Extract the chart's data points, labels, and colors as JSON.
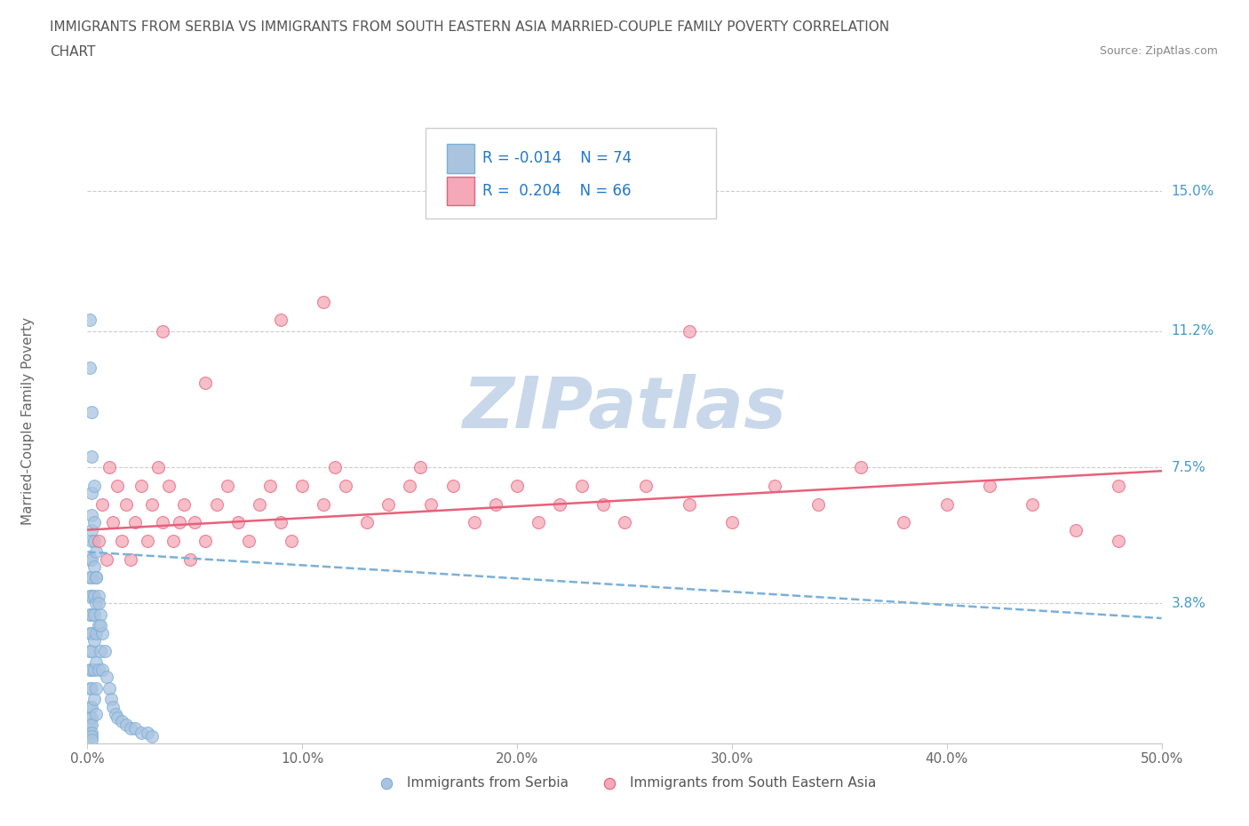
{
  "title_line1": "IMMIGRANTS FROM SERBIA VS IMMIGRANTS FROM SOUTH EASTERN ASIA MARRIED-COUPLE FAMILY POVERTY CORRELATION",
  "title_line2": "CHART",
  "source_text": "Source: ZipAtlas.com",
  "ylabel": "Married-Couple Family Poverty",
  "legend_label1": "Immigrants from Serbia",
  "legend_label2": "Immigrants from South Eastern Asia",
  "R1": -0.014,
  "N1": 74,
  "R2": 0.204,
  "N2": 66,
  "color1": "#aac4e0",
  "color2": "#f4a8b8",
  "trendline1_color": "#7ab0d8",
  "trendline2_color": "#e8607a",
  "xlim": [
    0.0,
    0.5
  ],
  "ylim": [
    0.0,
    0.175
  ],
  "xticks": [
    0.0,
    0.1,
    0.2,
    0.3,
    0.4,
    0.5
  ],
  "xticklabels": [
    "0.0%",
    "10.0%",
    "20.0%",
    "30.0%",
    "40.0%",
    "50.0%"
  ],
  "ytick_positions": [
    0.038,
    0.075,
    0.112,
    0.15
  ],
  "ytick_labels": [
    "3.8%",
    "7.5%",
    "11.2%",
    "15.0%"
  ],
  "watermark_color": "#c8d8ea",
  "serbia_x": [
    0.001,
    0.001,
    0.001,
    0.001,
    0.001,
    0.001,
    0.001,
    0.001,
    0.001,
    0.001,
    0.001,
    0.001,
    0.002,
    0.002,
    0.002,
    0.002,
    0.002,
    0.002,
    0.002,
    0.002,
    0.002,
    0.002,
    0.002,
    0.002,
    0.002,
    0.002,
    0.002,
    0.002,
    0.002,
    0.002,
    0.003,
    0.003,
    0.003,
    0.003,
    0.003,
    0.003,
    0.003,
    0.004,
    0.004,
    0.004,
    0.004,
    0.004,
    0.004,
    0.005,
    0.005,
    0.005,
    0.006,
    0.006,
    0.007,
    0.007,
    0.008,
    0.009,
    0.01,
    0.011,
    0.012,
    0.013,
    0.014,
    0.016,
    0.018,
    0.02,
    0.022,
    0.025,
    0.028,
    0.03,
    0.001,
    0.001,
    0.002,
    0.002,
    0.003,
    0.003,
    0.004,
    0.004,
    0.005,
    0.006
  ],
  "serbia_y": [
    0.05,
    0.045,
    0.04,
    0.035,
    0.03,
    0.025,
    0.02,
    0.015,
    0.01,
    0.007,
    0.005,
    0.003,
    0.068,
    0.062,
    0.058,
    0.055,
    0.05,
    0.045,
    0.04,
    0.035,
    0.03,
    0.025,
    0.02,
    0.015,
    0.01,
    0.007,
    0.005,
    0.003,
    0.002,
    0.001,
    0.055,
    0.048,
    0.04,
    0.035,
    0.028,
    0.02,
    0.012,
    0.045,
    0.038,
    0.03,
    0.022,
    0.015,
    0.008,
    0.04,
    0.032,
    0.02,
    0.035,
    0.025,
    0.03,
    0.02,
    0.025,
    0.018,
    0.015,
    0.012,
    0.01,
    0.008,
    0.007,
    0.006,
    0.005,
    0.004,
    0.004,
    0.003,
    0.003,
    0.002,
    0.115,
    0.102,
    0.09,
    0.078,
    0.07,
    0.06,
    0.052,
    0.045,
    0.038,
    0.032
  ],
  "sea_x": [
    0.005,
    0.007,
    0.009,
    0.01,
    0.012,
    0.014,
    0.016,
    0.018,
    0.02,
    0.022,
    0.025,
    0.028,
    0.03,
    0.033,
    0.035,
    0.038,
    0.04,
    0.043,
    0.045,
    0.048,
    0.05,
    0.055,
    0.06,
    0.065,
    0.07,
    0.075,
    0.08,
    0.085,
    0.09,
    0.095,
    0.1,
    0.11,
    0.115,
    0.12,
    0.13,
    0.14,
    0.15,
    0.155,
    0.16,
    0.17,
    0.18,
    0.19,
    0.2,
    0.21,
    0.22,
    0.23,
    0.24,
    0.25,
    0.26,
    0.28,
    0.3,
    0.32,
    0.34,
    0.36,
    0.38,
    0.4,
    0.42,
    0.44,
    0.46,
    0.48,
    0.035,
    0.055,
    0.09,
    0.11,
    0.28,
    0.48
  ],
  "sea_y": [
    0.055,
    0.065,
    0.05,
    0.075,
    0.06,
    0.07,
    0.055,
    0.065,
    0.05,
    0.06,
    0.07,
    0.055,
    0.065,
    0.075,
    0.06,
    0.07,
    0.055,
    0.06,
    0.065,
    0.05,
    0.06,
    0.055,
    0.065,
    0.07,
    0.06,
    0.055,
    0.065,
    0.07,
    0.06,
    0.055,
    0.07,
    0.065,
    0.075,
    0.07,
    0.06,
    0.065,
    0.07,
    0.075,
    0.065,
    0.07,
    0.06,
    0.065,
    0.07,
    0.06,
    0.065,
    0.07,
    0.065,
    0.06,
    0.07,
    0.065,
    0.06,
    0.07,
    0.065,
    0.075,
    0.06,
    0.065,
    0.07,
    0.065,
    0.058,
    0.07,
    0.112,
    0.098,
    0.115,
    0.12,
    0.112,
    0.055
  ],
  "serbia_trend_x": [
    0.0,
    0.5
  ],
  "serbia_trend_y": [
    0.052,
    0.034
  ],
  "sea_trend_x": [
    0.0,
    0.5
  ],
  "sea_trend_y": [
    0.058,
    0.074
  ]
}
